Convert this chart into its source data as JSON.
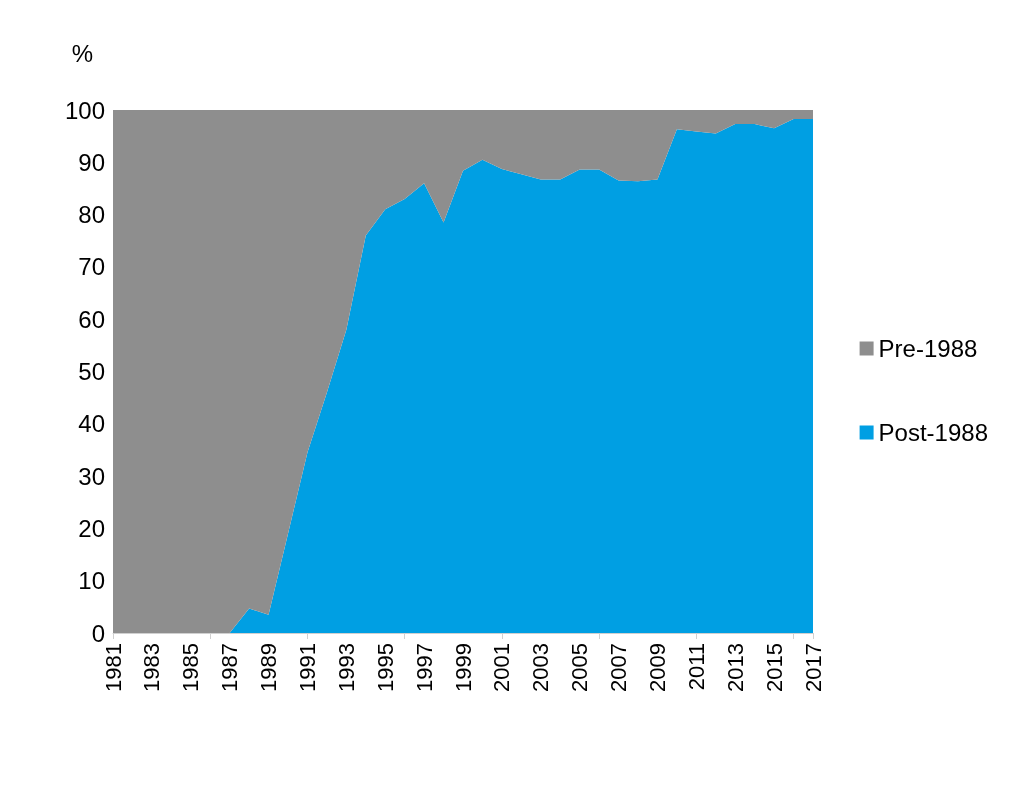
{
  "chart_data": {
    "type": "area",
    "stacked": true,
    "ylabel": "%",
    "categories": [
      "1981",
      null,
      "1983",
      null,
      "1985",
      null,
      "1987",
      null,
      "1989",
      null,
      "1991",
      null,
      "1993",
      null,
      "1995",
      null,
      "1997",
      null,
      "1999",
      null,
      "2001",
      null,
      "2003",
      null,
      "2005",
      null,
      "2007",
      null,
      "2009",
      null,
      "2011",
      null,
      "2013",
      null,
      "2015",
      null,
      "2017"
    ],
    "series": [
      {
        "name": "Post-1988",
        "color": "#009fe3",
        "values": [
          0,
          0,
          0,
          0,
          0,
          0,
          0,
          4.7,
          3.5,
          19,
          34.5,
          46,
          58,
          76,
          81,
          83,
          86,
          78.5,
          88.4,
          90.5,
          88.7,
          87.7,
          86.7,
          86.7,
          88.6,
          88.6,
          86.5,
          86.4,
          86.7,
          96.3,
          95.9,
          95.5,
          97.3,
          97.3,
          96.5,
          98.3,
          98.3
        ]
      },
      {
        "name": "Pre-1988",
        "color": "#8e8e8e",
        "values": [
          100,
          100,
          100,
          100,
          100,
          100,
          100,
          95.3,
          96.5,
          81,
          65.5,
          54,
          42,
          24,
          19,
          17,
          14,
          21.5,
          11.6,
          9.5,
          11.3,
          12.3,
          13.3,
          13.3,
          11.4,
          11.4,
          13.5,
          13.6,
          13.3,
          3.7,
          4.1,
          4.5,
          2.7,
          2.7,
          3.5,
          1.7,
          1.7
        ]
      }
    ],
    "ylim": [
      0,
      100
    ],
    "yticks": [
      0,
      10,
      20,
      30,
      40,
      50,
      60,
      70,
      80,
      90,
      100
    ],
    "grid": false,
    "legend": "right"
  }
}
